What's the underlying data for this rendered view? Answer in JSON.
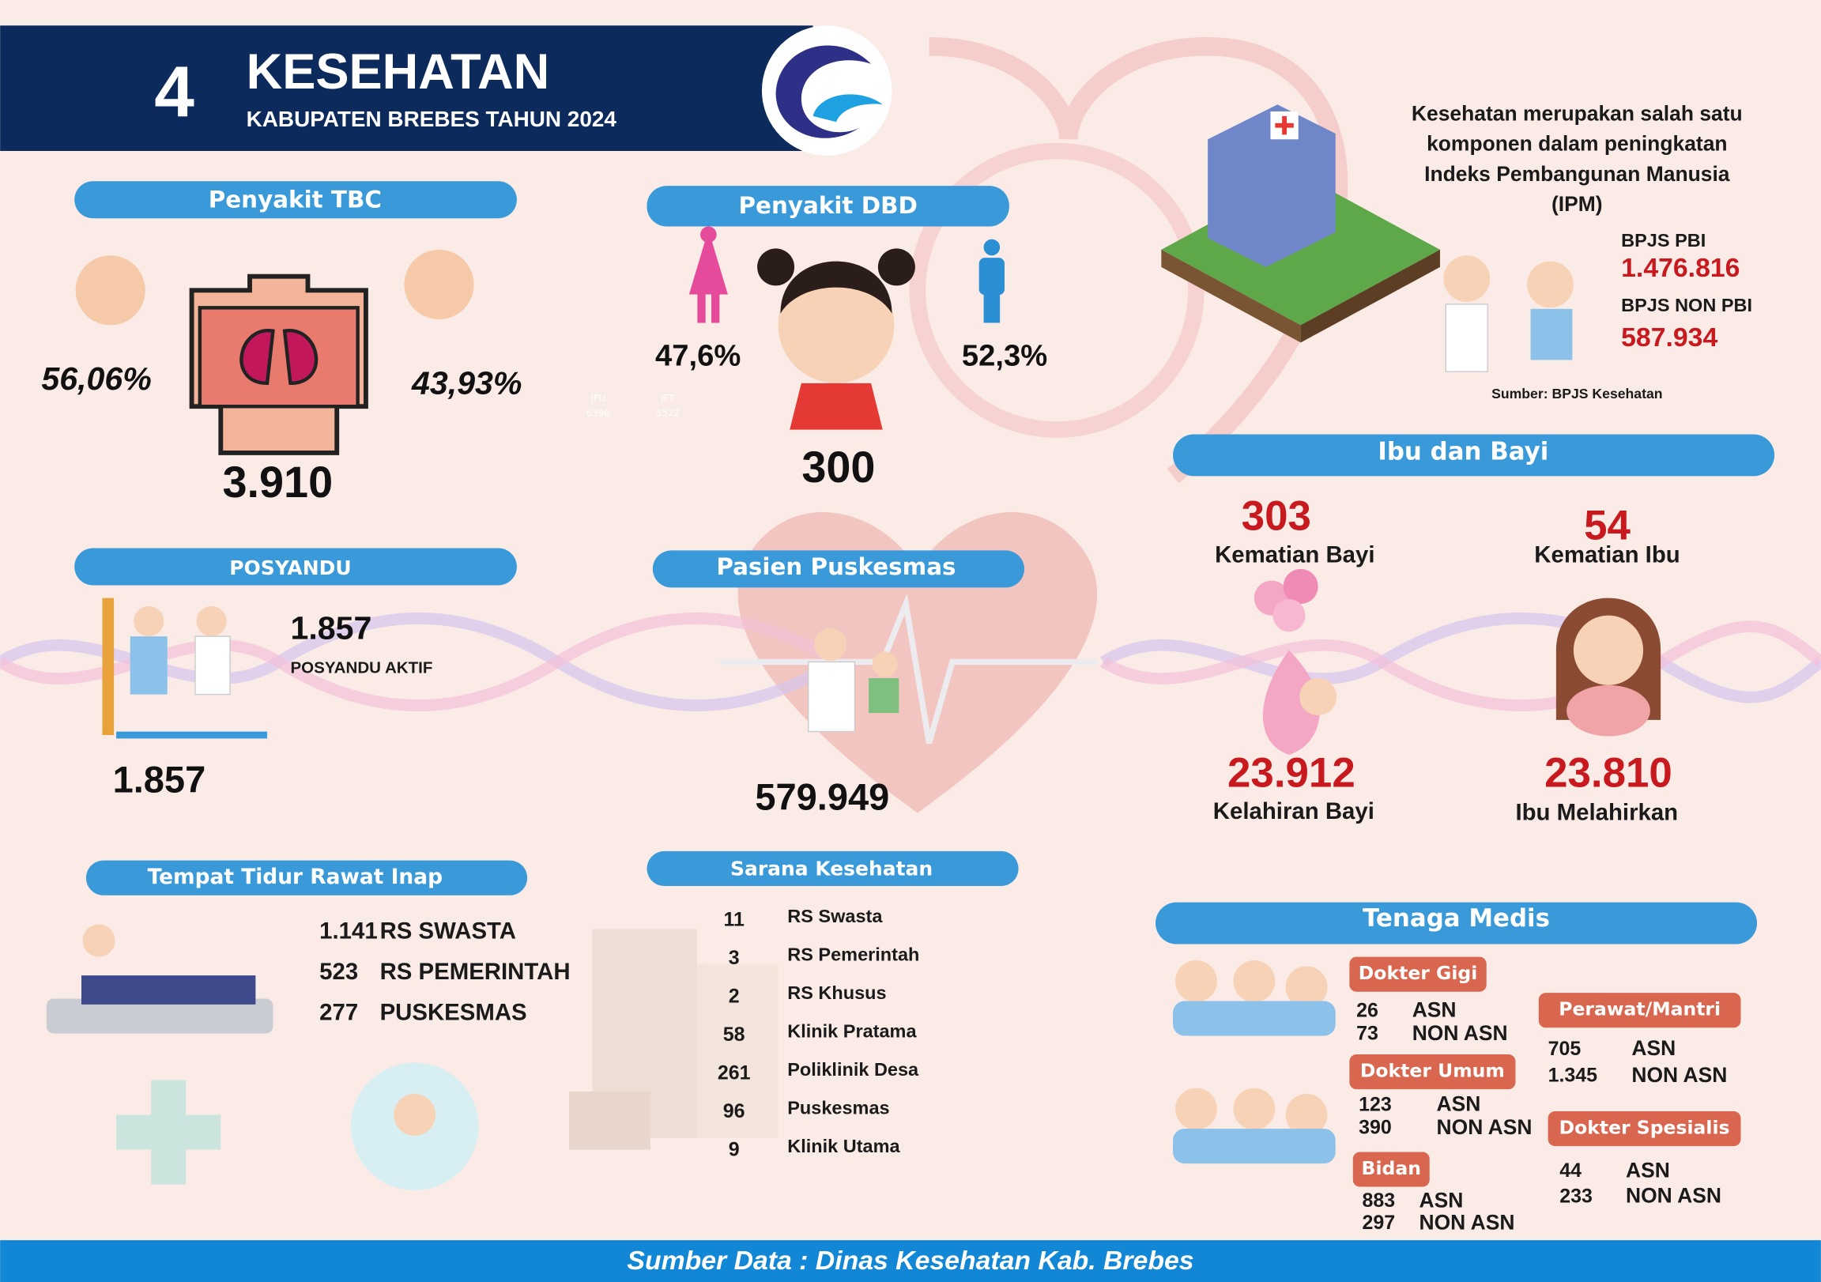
{
  "header": {
    "number": "4",
    "title": "KESEHATAN",
    "subtitle": "KABUPATEN BREBES TAHUN 2024"
  },
  "tbc": {
    "title": "Penyakit TBC",
    "female": "56,06%",
    "male": "43,93%",
    "total": "3.910"
  },
  "dbd": {
    "title": "Penyakit DBD",
    "female": "47,6%",
    "male": "52,3%",
    "total": "300"
  },
  "faint_labels": [
    "JFU",
    "6396",
    "JFT",
    "5522"
  ],
  "ipm": {
    "lines": [
      "Kesehatan merupakan salah satu",
      "komponen dalam peningkatan",
      "Indeks Pembangunan Manusia",
      "(IPM)"
    ],
    "pbi_label": "BPJS PBI",
    "pbi_value": "1.476.816",
    "non_pbi_label": "BPJS NON PBI",
    "non_pbi_value": "587.934",
    "source": "Sumber: BPJS Kesehatan"
  },
  "ibu_bayi": {
    "title": "Ibu dan Bayi",
    "items": [
      {
        "value": "303",
        "label": "Kematian Bayi"
      },
      {
        "value": "54",
        "label": "Kematian Ibu"
      },
      {
        "value": "23.912",
        "label": "Kelahiran Bayi"
      },
      {
        "value": "23.810",
        "label": "Ibu Melahirkan"
      }
    ]
  },
  "posyandu": {
    "title": "POSYANDU",
    "value": "1.857",
    "label": "POSYANDU AKTIF",
    "total": "1.857"
  },
  "puskesmas": {
    "title": "Pasien Puskesmas",
    "value": "579.949"
  },
  "tempat_tidur": {
    "title": "Tempat Tidur Rawat Inap",
    "rows": [
      [
        "1.141",
        "RS SWASTA"
      ],
      [
        "523",
        "RS PEMERINTAH"
      ],
      [
        "277",
        "PUSKESMAS"
      ]
    ]
  },
  "sarana": {
    "title": "Sarana Kesehatan",
    "rows": [
      [
        "11",
        "RS Swasta"
      ],
      [
        "3",
        "RS Pemerintah"
      ],
      [
        "2",
        "RS Khusus"
      ],
      [
        "58",
        "Klinik Pratama"
      ],
      [
        "261",
        "Poliklinik Desa"
      ],
      [
        "96",
        "Puskesmas"
      ],
      [
        "9",
        "Klinik Utama"
      ]
    ]
  },
  "tenaga": {
    "title": "Tenaga Medis",
    "groups": [
      {
        "name": "Dokter Gigi",
        "rows": [
          [
            "26",
            "ASN"
          ],
          [
            "73",
            "NON ASN"
          ]
        ]
      },
      {
        "name": "Dokter Umum",
        "rows": [
          [
            "123",
            "ASN"
          ],
          [
            "390",
            "NON ASN"
          ]
        ]
      },
      {
        "name": "Bidan",
        "rows": [
          [
            "883",
            "ASN"
          ],
          [
            "297",
            "NON ASN"
          ]
        ]
      },
      {
        "name": "Perawat/Mantri",
        "rows": [
          [
            "705",
            "ASN"
          ],
          [
            "1.345",
            "NON ASN"
          ]
        ]
      },
      {
        "name": "Dokter Spesialis",
        "rows": [
          [
            "44",
            "ASN"
          ],
          [
            "233",
            "NON ASN"
          ]
        ]
      }
    ]
  },
  "footer": "Sumber Data : Dinas Kesehatan Kab. Brebes"
}
